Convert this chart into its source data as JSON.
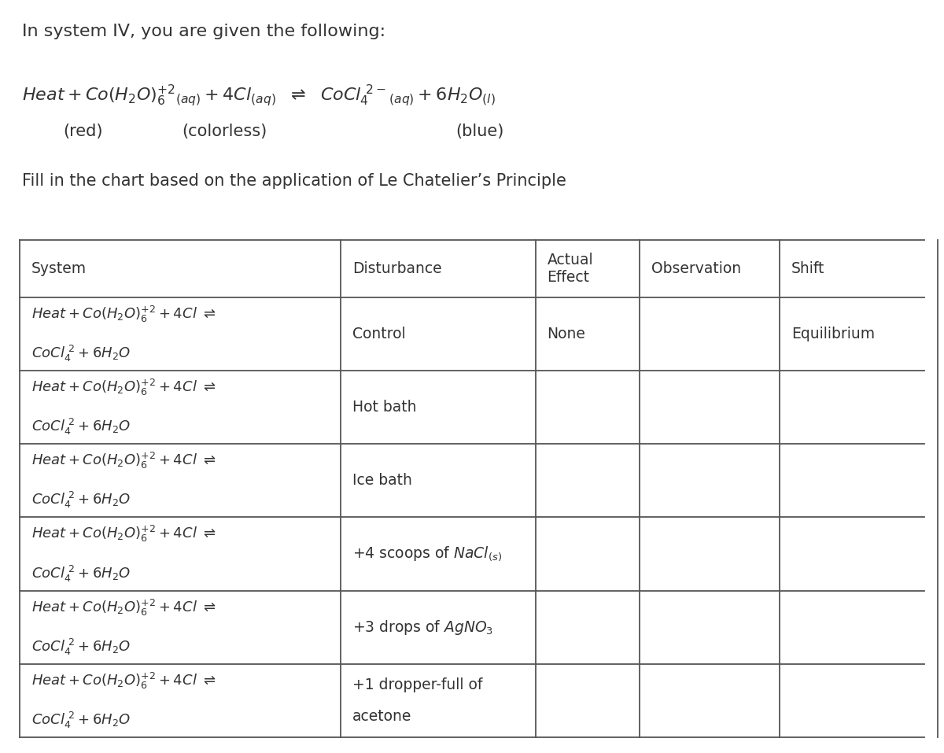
{
  "title": "In system IV, you are given the following:",
  "subtitle": "Fill in the chart based on the application of Le Chatelier’s Principle",
  "col_headers": [
    "System",
    "Disturbance",
    "Actual\nEffect",
    "Observation",
    "Shift"
  ],
  "rows": [
    {
      "disturbance": "Control",
      "actual": "None",
      "observation": "",
      "shift": "Equilibrium"
    },
    {
      "disturbance": "Hot bath",
      "actual": "",
      "observation": "",
      "shift": ""
    },
    {
      "disturbance": "Ice bath",
      "actual": "",
      "observation": "",
      "shift": ""
    },
    {
      "disturbance": "+4 scoops of NaCl(s)",
      "actual": "",
      "observation": "",
      "shift": ""
    },
    {
      "disturbance": "+3 drops of AgNO₃",
      "actual": "",
      "observation": "",
      "shift": ""
    },
    {
      "disturbance": "+1 dropper-full of\nacetone",
      "actual": "",
      "observation": "",
      "shift": ""
    }
  ],
  "background_color": "#ffffff",
  "text_color": "#333333",
  "border_color": "#555555",
  "font_size_title": 16,
  "font_size_eq": 16,
  "font_size_table": 13.5,
  "fig_width": 12.0,
  "fig_height": 9.57
}
